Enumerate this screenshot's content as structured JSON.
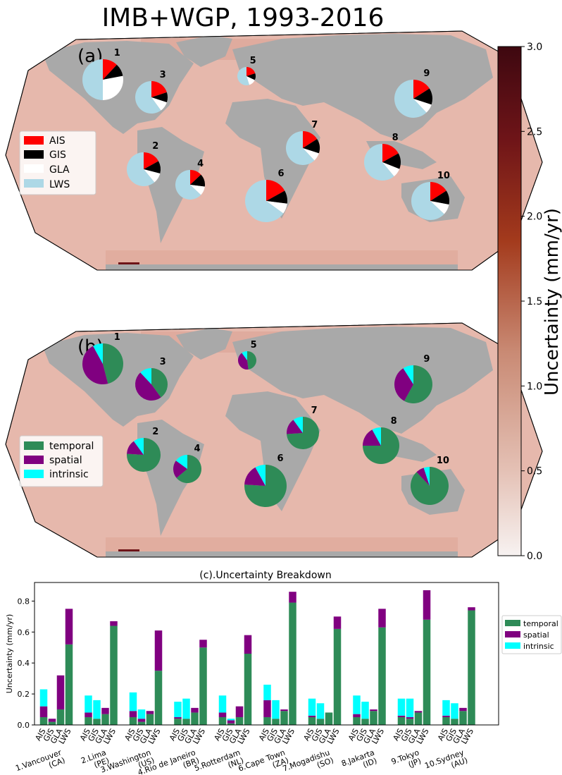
{
  "figure_title": "IMB+WGP, 1993-2016",
  "panel_a_label": "(a)",
  "panel_b_label": "(b)",
  "colorbar": {
    "label": "Uncertainty (mm/yr)",
    "ticks": [
      "0.0",
      "0.5",
      "1.0",
      "1.5",
      "2.0",
      "2.5",
      "3.0"
    ],
    "range": [
      0,
      3
    ],
    "colors": [
      "#f7f2f1",
      "#c98a74",
      "#a33a1c",
      "#3e0810"
    ]
  },
  "colors": {
    "AIS": "#ff0000",
    "GIS": "#000000",
    "GLA": "#ffffff",
    "LWS": "#add8e6",
    "temporal": "#2e8b57",
    "spatial": "#800080",
    "intrinsic": "#00ffff",
    "ocean": "#e6b4a8",
    "land": "#a9a9a9"
  },
  "legend_a": [
    "AIS",
    "GIS",
    "GLA",
    "LWS"
  ],
  "legend_b": [
    "temporal",
    "spatial",
    "intrinsic"
  ],
  "sites": [
    {
      "num": "1",
      "label": "1.Vancouver\n(CA)"
    },
    {
      "num": "2",
      "label": "2.Lima\n(PE)"
    },
    {
      "num": "3",
      "label": "3.Washington\n(US)"
    },
    {
      "num": "4",
      "label": "4.Rio de Janeiro\n(BR)"
    },
    {
      "num": "5",
      "label": "5.Rotterdam\n(NL)"
    },
    {
      "num": "6",
      "label": "6.Cape Town\n(ZA)"
    },
    {
      "num": "7",
      "label": "7.Mogadishu\n(SO)"
    },
    {
      "num": "8",
      "label": "8.Jakarta\n(ID)"
    },
    {
      "num": "9",
      "label": "9.Tokyo\n(JP)"
    },
    {
      "num": "10",
      "label": "10.Sydney\n(AU)"
    }
  ],
  "chart_data": [
    {
      "type": "pie",
      "panel": "(a)",
      "categories": [
        "AIS",
        "GIS",
        "GLA",
        "LWS"
      ],
      "pies": [
        {
          "site": "1",
          "values": [
            0.12,
            0.1,
            0.28,
            0.5
          ]
        },
        {
          "site": "2",
          "values": [
            0.17,
            0.12,
            0.1,
            0.61
          ]
        },
        {
          "site": "3",
          "values": [
            0.2,
            0.1,
            0.1,
            0.6
          ]
        },
        {
          "site": "4",
          "values": [
            0.13,
            0.14,
            0.1,
            0.63
          ]
        },
        {
          "site": "5",
          "values": [
            0.2,
            0.12,
            0.13,
            0.55
          ]
        },
        {
          "site": "6",
          "values": [
            0.17,
            0.1,
            0.08,
            0.65
          ]
        },
        {
          "site": "7",
          "values": [
            0.16,
            0.14,
            0.08,
            0.62
          ]
        },
        {
          "site": "8",
          "values": [
            0.17,
            0.14,
            0.08,
            0.61
          ]
        },
        {
          "site": "9",
          "values": [
            0.16,
            0.14,
            0.08,
            0.62
          ]
        },
        {
          "site": "10",
          "values": [
            0.16,
            0.12,
            0.09,
            0.63
          ]
        }
      ]
    },
    {
      "type": "pie",
      "panel": "(b)",
      "categories": [
        "temporal",
        "spatial",
        "intrinsic"
      ],
      "pies": [
        {
          "site": "1",
          "values": [
            0.46,
            0.46,
            0.08
          ]
        },
        {
          "site": "2",
          "values": [
            0.76,
            0.14,
            0.1
          ]
        },
        {
          "site": "3",
          "values": [
            0.4,
            0.48,
            0.12
          ]
        },
        {
          "site": "4",
          "values": [
            0.64,
            0.21,
            0.15
          ]
        },
        {
          "site": "5",
          "values": [
            0.48,
            0.42,
            0.1
          ]
        },
        {
          "site": "6",
          "values": [
            0.76,
            0.16,
            0.08
          ]
        },
        {
          "site": "7",
          "values": [
            0.74,
            0.16,
            0.1
          ]
        },
        {
          "site": "8",
          "values": [
            0.75,
            0.17,
            0.08
          ]
        },
        {
          "site": "9",
          "values": [
            0.58,
            0.33,
            0.09
          ]
        },
        {
          "site": "10",
          "values": [
            0.88,
            0.07,
            0.05
          ]
        }
      ]
    },
    {
      "type": "bar",
      "title": "(c).Uncertainty Breakdown",
      "ylabel": "Uncertainty (mm/yr)",
      "xlabel": "",
      "ylim": [
        0,
        0.92
      ],
      "yticks": [
        "0.0",
        "0.2",
        "0.4",
        "0.6",
        "0.8"
      ],
      "stacked": true,
      "bar_labels": [
        "AIS",
        "GIS",
        "GLA",
        "LWS"
      ],
      "categories": [
        "1.Vancouver (CA)",
        "2.Lima (PE)",
        "3.Washington (US)",
        "4.Rio de Janeiro (BR)",
        "5.Rotterdam (NL)",
        "6.Cape Town (ZA)",
        "7.Mogadishu (SO)",
        "8.Jakarta (ID)",
        "9.Tokyo (JP)",
        "10.Sydney (AU)"
      ],
      "series": [
        {
          "name": "temporal",
          "values": [
            [
              0.05,
              0.02,
              0.1,
              0.52
            ],
            [
              0.05,
              0.04,
              0.07,
              0.64
            ],
            [
              0.05,
              0.02,
              0.07,
              0.35
            ],
            [
              0.04,
              0.04,
              0.08,
              0.5
            ],
            [
              0.05,
              0.01,
              0.05,
              0.46
            ],
            [
              0.05,
              0.04,
              0.09,
              0.79
            ],
            [
              0.05,
              0.04,
              0.08,
              0.62
            ],
            [
              0.05,
              0.04,
              0.09,
              0.63
            ],
            [
              0.05,
              0.04,
              0.08,
              0.68
            ],
            [
              0.05,
              0.04,
              0.09,
              0.74
            ]
          ]
        },
        {
          "name": "spatial",
          "values": [
            [
              0.07,
              0.02,
              0.22,
              0.23
            ],
            [
              0.03,
              0.0,
              0.04,
              0.03
            ],
            [
              0.04,
              0.02,
              0.02,
              0.26
            ],
            [
              0.01,
              0.0,
              0.03,
              0.05
            ],
            [
              0.03,
              0.02,
              0.07,
              0.12
            ],
            [
              0.11,
              0.0,
              0.01,
              0.07
            ],
            [
              0.01,
              0.0,
              0.0,
              0.08
            ],
            [
              0.02,
              0.0,
              0.01,
              0.12
            ],
            [
              0.01,
              0.01,
              0.01,
              0.19
            ],
            [
              0.01,
              0.0,
              0.02,
              0.02
            ]
          ]
        },
        {
          "name": "intrinsic",
          "values": [
            [
              0.11,
              0.0,
              0.0,
              0.0
            ],
            [
              0.11,
              0.12,
              0.0,
              0.0
            ],
            [
              0.12,
              0.06,
              0.0,
              0.0
            ],
            [
              0.1,
              0.13,
              0.0,
              0.0
            ],
            [
              0.11,
              0.01,
              0.0,
              0.0
            ],
            [
              0.1,
              0.12,
              0.0,
              0.0
            ],
            [
              0.11,
              0.1,
              0.0,
              0.0
            ],
            [
              0.12,
              0.11,
              0.0,
              0.0
            ],
            [
              0.11,
              0.12,
              0.0,
              0.0
            ],
            [
              0.1,
              0.1,
              0.0,
              0.0
            ]
          ]
        }
      ]
    }
  ]
}
